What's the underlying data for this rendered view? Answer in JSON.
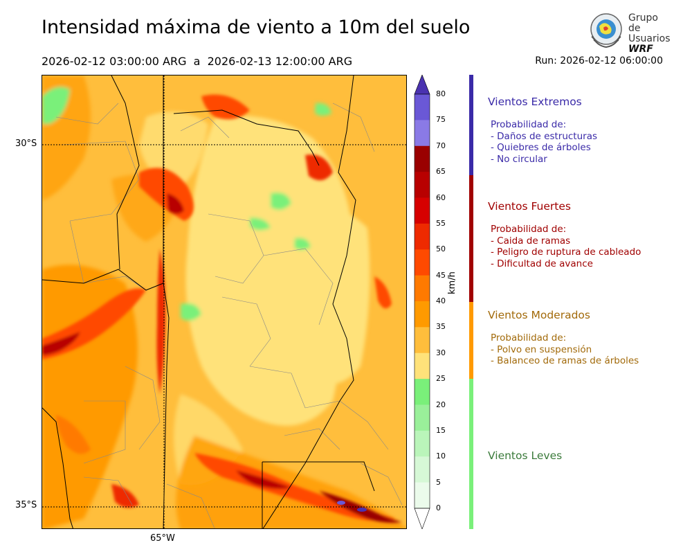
{
  "header": {
    "title": "Intensidad máxima de viento a 10m del suelo",
    "period": "2026-02-12 03:00:00 ARG  a  2026-02-13 12:00:00 ARG",
    "run": "Run: 2026-02-12 06:00:00"
  },
  "logo": {
    "line1": "Grupo de",
    "line2": "Usuarios",
    "line3": "WRF"
  },
  "map": {
    "lat_labels": [
      "30°S",
      "35°S"
    ],
    "lon_labels": [
      "65°W"
    ]
  },
  "colorbar": {
    "unit": "km/h",
    "ticks": [
      "80",
      "75",
      "70",
      "65",
      "60",
      "55",
      "50",
      "45",
      "40",
      "35",
      "30",
      "25",
      "20",
      "15",
      "10",
      "5",
      "0"
    ],
    "colors": [
      "#4a32b0",
      "#6a58d6",
      "#8a7ae6",
      "#9a0000",
      "#b80000",
      "#d60000",
      "#ee2a00",
      "#ff4a00",
      "#ff7a00",
      "#ff9a00",
      "#ffbe3c",
      "#ffe27a",
      "#7af07a",
      "#9af09a",
      "#baf5ba",
      "#d6f8d6",
      "#ebfbeb"
    ]
  },
  "legend": {
    "categories": [
      {
        "title": "Vientos Extremos",
        "color": "#3a2aa8",
        "lines": [
          "Probabilidad de:",
          "- Daños de estructuras",
          "- Quiebres de árboles",
          "- No circular"
        ]
      },
      {
        "title": "Vientos Fuertes",
        "color": "#a00000",
        "lines": [
          "Probabilidad de:",
          "- Caida de ramas",
          "- Peligro de ruptura de cableado",
          "- Dificultad de avance"
        ]
      },
      {
        "title": "Vientos Moderados",
        "color": "#a26a0a",
        "bar_color": "#ff9a00",
        "lines": [
          "Probabilidad de:",
          "- Polvo en suspensión",
          "- Balanceo de ramas de árboles"
        ]
      },
      {
        "title": "Vientos Leves",
        "color": "#3a7a3a",
        "bar_color": "#7af07a",
        "lines": []
      }
    ]
  }
}
